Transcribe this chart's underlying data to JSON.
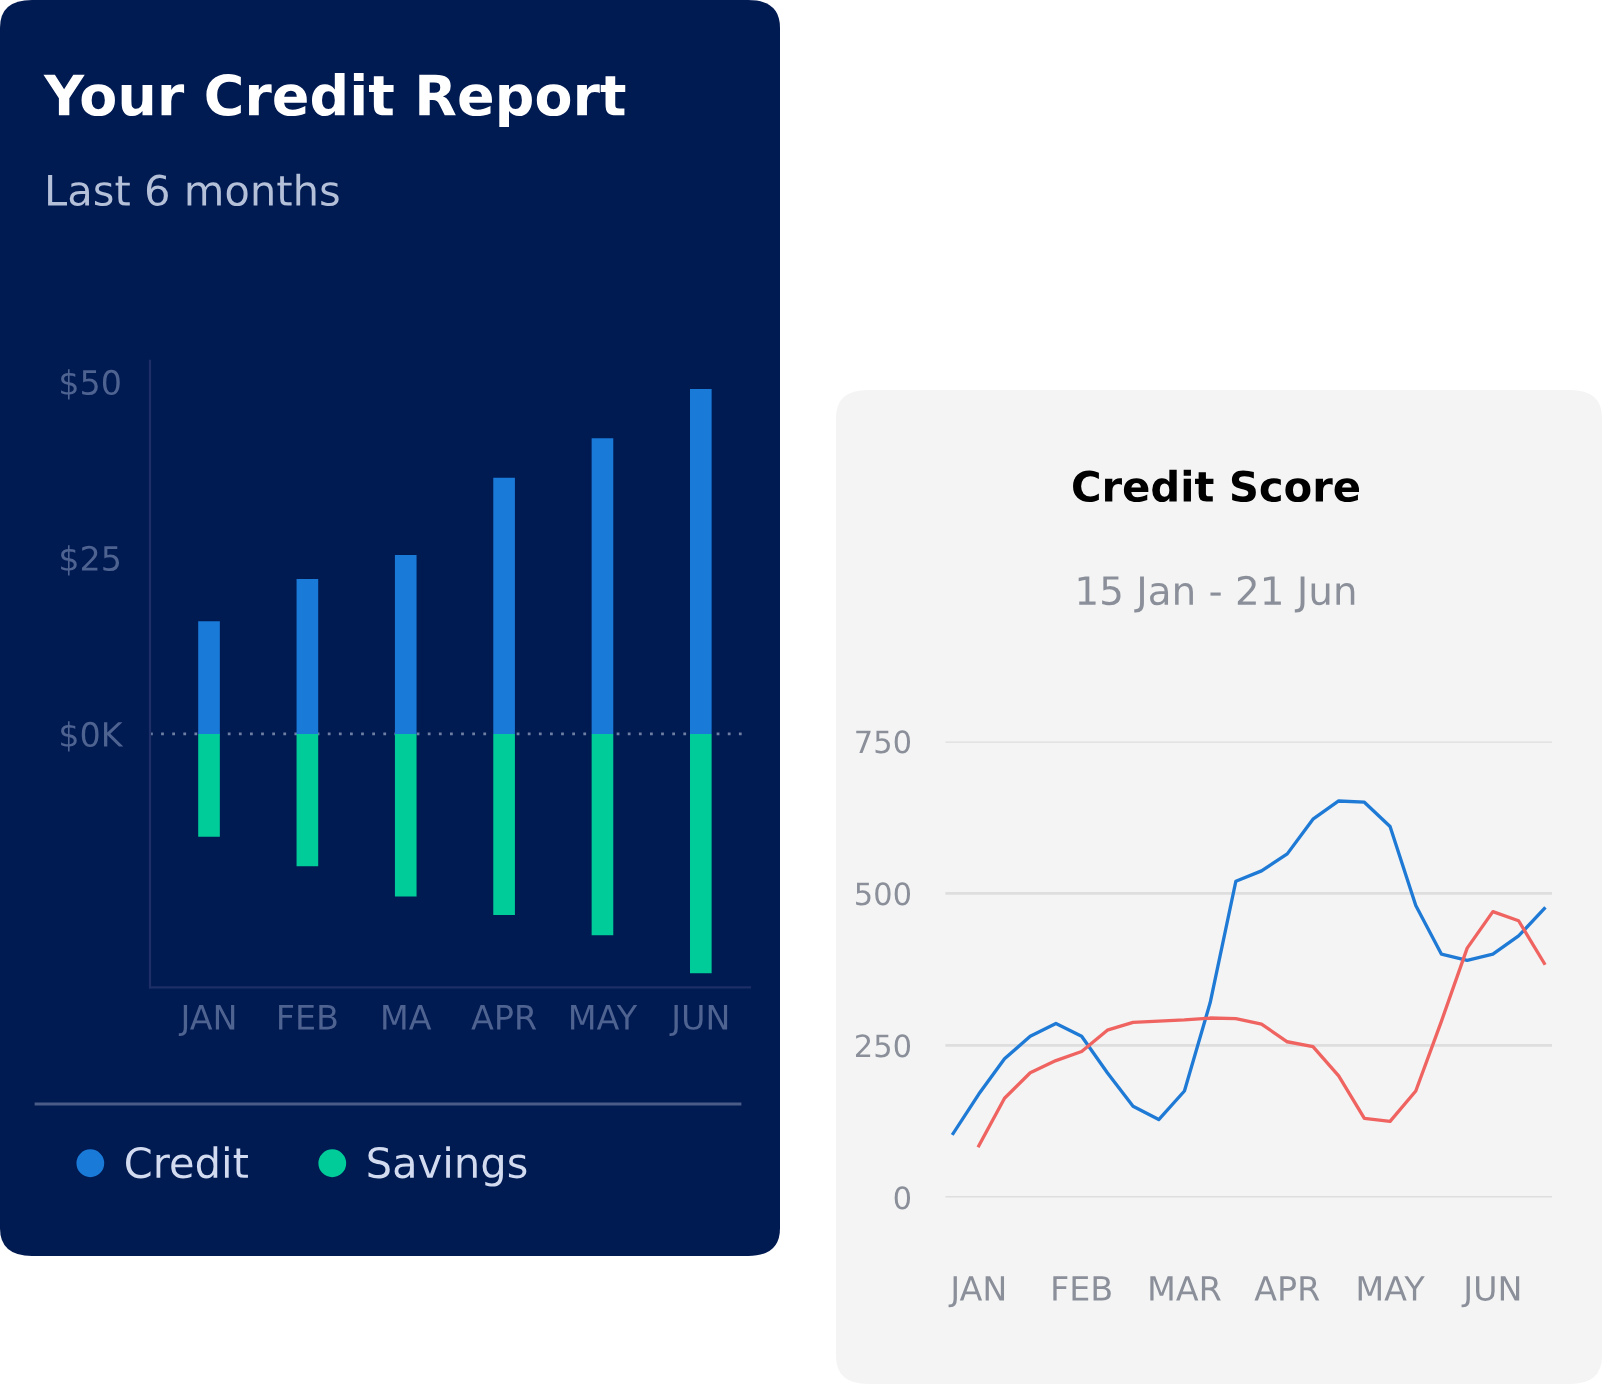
{
  "chart_data": [
    {
      "type": "bar",
      "title": "Your Credit Report",
      "subtitle": "Last 6 months",
      "categories": [
        "JAN",
        "FEB",
        "MA",
        "APR",
        "MAY",
        "JUN"
      ],
      "stacked": true,
      "series": [
        {
          "name": "Credit",
          "color": "#1a7ad8",
          "values": [
            16,
            22,
            25.4,
            36.4,
            42,
            49
          ]
        },
        {
          "name": "Savings",
          "color": "#00cc99",
          "values": [
            -14.6,
            -18.8,
            -23.1,
            -25.7,
            -28.6,
            -34
          ]
        }
      ],
      "ylim": [
        -36,
        53
      ],
      "yticks": [
        {
          "value": 0,
          "label": "$0K"
        },
        {
          "value": 25,
          "label": "$25"
        },
        {
          "value": 50,
          "label": "$50"
        }
      ],
      "ref_lines": [
        {
          "axis": "y",
          "value": 0,
          "color": "#6f7fa3",
          "line_style": "dotted"
        }
      ],
      "legend": "bottom"
    },
    {
      "type": "line",
      "title": "Credit Score",
      "subtitle": "15 Jan - 21 Jun",
      "categories": [
        null,
        "JAN",
        null,
        null,
        null,
        "FEB",
        null,
        null,
        null,
        "MAR",
        null,
        null,
        null,
        "APR",
        null,
        null,
        null,
        "MAY",
        null,
        null,
        null,
        "JUN",
        null,
        null
      ],
      "ylim": [
        0,
        750
      ],
      "yticks": [
        0,
        250,
        500,
        750
      ],
      "grid": "y",
      "series": [
        {
          "color": "#1f7ad6",
          "values": [
            105,
            170,
            228,
            265,
            286,
            265,
            205,
            150,
            128,
            175,
            320,
            520,
            537,
            565,
            622,
            652,
            650,
            610,
            480,
            400,
            390,
            400,
            430,
            475
          ]
        },
        {
          "color": "#ef6461",
          "values": [
            null,
            85,
            163,
            205,
            225,
            240,
            275,
            288,
            290,
            292,
            295,
            294,
            285,
            256,
            248,
            200,
            130,
            125,
            175,
            290,
            410,
            470,
            455,
            385
          ]
        }
      ]
    }
  ]
}
